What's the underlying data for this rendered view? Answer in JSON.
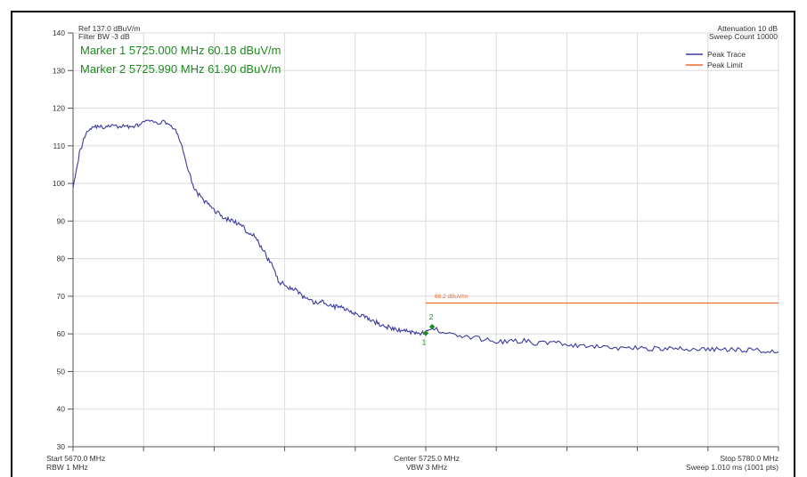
{
  "header": {
    "ref_level": "Ref 137.0 dBuV/m",
    "filter_bw": "Filter BW -3 dB",
    "attenuation": "Attenuation 10 dB",
    "sweep_count": "Sweep Count 10000"
  },
  "markers": {
    "marker1_text": "Marker 1 5725.000 MHz 60.18 dBuV/m",
    "marker2_text": "Marker 2 5725.990 MHz 61.90 dBuV/m"
  },
  "footer": {
    "start": "Start 5670.0 MHz",
    "rbw": "RBW 1 MHz",
    "center": "Center 5725.0 MHz",
    "vbw": "VBW 3 MHz",
    "stop": "Stop 5780.0 MHz",
    "sweep": "Sweep 1.010 ms (1001 pts)"
  },
  "colors": {
    "trace": "#3a3aa0",
    "limit": "#ee6a30",
    "marker": "#1f8a1f",
    "grid": "#dcdcdc"
  },
  "chart_data": {
    "type": "line",
    "x_range": [
      5670.0,
      5780.0
    ],
    "ylim": [
      30,
      140
    ],
    "y_ticks": [
      30,
      40,
      50,
      60,
      70,
      80,
      90,
      100,
      110,
      120,
      130,
      140
    ],
    "grid": true,
    "legend_position": "top-right",
    "series": [
      {
        "name": "Peak Trace",
        "x": [
          5670.0,
          5671.0,
          5672.0,
          5673.0,
          5674.0,
          5675.0,
          5676.0,
          5677.0,
          5678.0,
          5679.0,
          5680.0,
          5681.0,
          5682.0,
          5683.0,
          5684.0,
          5685.0,
          5686.0,
          5687.0,
          5688.0,
          5689.0,
          5690.0,
          5691.0,
          5692.0,
          5693.0,
          5694.0,
          5695.0,
          5696.0,
          5697.0,
          5698.0,
          5699.0,
          5700.0,
          5701.0,
          5702.0,
          5703.0,
          5704.0,
          5705.0,
          5706.0,
          5707.0,
          5708.0,
          5709.0,
          5710.0,
          5711.0,
          5712.0,
          5713.0,
          5714.0,
          5715.0,
          5716.0,
          5717.0,
          5718.0,
          5719.0,
          5720.0,
          5721.0,
          5722.0,
          5723.0,
          5724.0,
          5725.0,
          5726.0,
          5728.0,
          5730.0,
          5732.0,
          5734.0,
          5736.0,
          5738.0,
          5740.0,
          5742.0,
          5744.0,
          5746.0,
          5748.0,
          5750.0,
          5752.0,
          5754.0,
          5756.0,
          5758.0,
          5760.0,
          5762.0,
          5764.0,
          5766.0,
          5768.0,
          5770.0,
          5772.0,
          5774.0,
          5776.0,
          5778.0,
          5780.0
        ],
        "y": [
          99.5,
          108.0,
          113.5,
          115.0,
          115.2,
          114.8,
          115.5,
          115.0,
          115.3,
          115.0,
          115.4,
          116.2,
          116.8,
          115.8,
          116.5,
          115.8,
          114.0,
          110.0,
          103.0,
          98.5,
          96.0,
          94.5,
          93.0,
          91.5,
          90.5,
          90.0,
          89.0,
          87.5,
          86.5,
          84.0,
          81.0,
          78.5,
          74.0,
          73.0,
          72.2,
          71.5,
          69.5,
          68.6,
          68.2,
          68.5,
          67.5,
          67.2,
          67.0,
          66.5,
          65.5,
          64.8,
          64.0,
          63.2,
          62.5,
          61.8,
          61.2,
          61.0,
          60.8,
          60.5,
          60.3,
          60.18,
          61.5,
          60.5,
          59.5,
          59.0,
          58.6,
          58.0,
          57.9,
          58.3,
          57.5,
          57.7,
          57.6,
          56.8,
          56.5,
          56.6,
          56.2,
          56.4,
          56.3,
          56.2,
          56.0,
          56.1,
          55.9,
          56.0,
          55.8,
          55.9,
          55.7,
          55.8,
          55.5,
          55.3
        ]
      },
      {
        "name": "Peak Limit",
        "x": [
          5725.0,
          5780.0
        ],
        "y": [
          68.2,
          68.2
        ],
        "label": "68.2 dBuV/m"
      }
    ],
    "markers": [
      {
        "label": "1",
        "x": 5725.0,
        "y": 60.18
      },
      {
        "label": "2",
        "x": 5725.99,
        "y": 61.9
      }
    ]
  }
}
